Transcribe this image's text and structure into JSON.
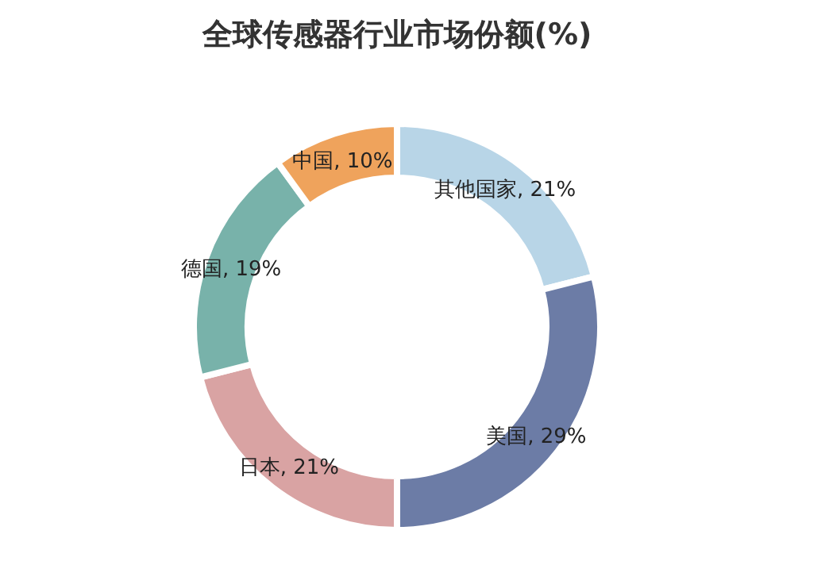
{
  "chart_data": {
    "type": "donut",
    "title": "全球传感器行业市场份额(%)",
    "categories": [
      "其他国家",
      "美国",
      "日本",
      "德国",
      "中国"
    ],
    "values": [
      21,
      29,
      21,
      19,
      10
    ],
    "value_labels": [
      "21%",
      "29%",
      "21%",
      "19%",
      "10%"
    ],
    "colors": [
      "#b8d5e7",
      "#6c7ca6",
      "#d9a3a3",
      "#78b2aa",
      "#efa35c"
    ]
  }
}
